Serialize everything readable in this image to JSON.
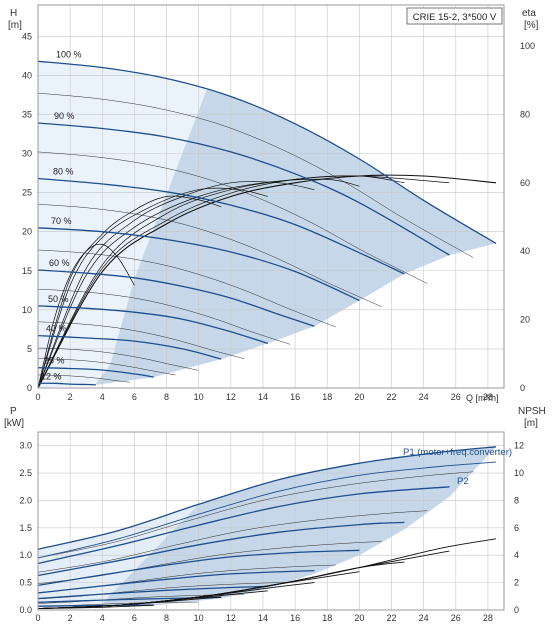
{
  "chart_data": [
    {
      "type": "line",
      "title": "CRIE 15-2, 3*500 V",
      "x_axis": {
        "label": "Q [m³/h]",
        "range": [
          0,
          29
        ],
        "ticks": [
          0,
          2,
          4,
          6,
          8,
          10,
          12,
          14,
          16,
          18,
          20,
          22,
          24,
          26,
          28
        ],
        "tick_labels": [
          "0",
          "2",
          "4",
          "6",
          "8",
          "10",
          "12",
          "14",
          "16",
          "18",
          "20",
          "22",
          "24",
          "26",
          "28"
        ],
        "label_text": "Q [m³/h]"
      },
      "y_left": {
        "label_line1": "H",
        "label_line2": "[m]",
        "range": [
          0,
          49
        ],
        "ticks": [
          0,
          5,
          10,
          15,
          20,
          25,
          30,
          35,
          40,
          45
        ]
      },
      "y_right": {
        "label_line1": "eta",
        "label_line2": "[%]",
        "range": [
          0,
          112
        ],
        "ticks": [
          0,
          20,
          40,
          60,
          80,
          100
        ]
      },
      "grid": true,
      "speed_labels": [
        "100 %",
        "90 %",
        "80 %",
        "70 %",
        "60 %",
        "50 %",
        "40 %",
        "25 %",
        "12 %"
      ],
      "head_curves": [
        {
          "speed": "100 %",
          "x": [
            0,
            4,
            8,
            12,
            16,
            20,
            24,
            28.5
          ],
          "y": [
            41.8,
            41.0,
            39.6,
            37.3,
            33.8,
            29.3,
            24.0,
            18.5
          ]
        },
        {
          "speed": "90 %",
          "x": [
            0,
            4,
            8,
            12,
            16,
            20,
            25.6
          ],
          "y": [
            33.9,
            33.2,
            32.1,
            30.2,
            27.4,
            23.7,
            17.0
          ]
        },
        {
          "speed": "80 %",
          "x": [
            0,
            4,
            8,
            12,
            16,
            20,
            22.8
          ],
          "y": [
            26.8,
            26.1,
            25.1,
            23.4,
            20.9,
            17.3,
            14.6
          ]
        },
        {
          "speed": "70 %",
          "x": [
            0,
            4,
            8,
            12,
            16,
            20
          ],
          "y": [
            20.5,
            20.0,
            19.0,
            17.4,
            14.9,
            11.2
          ]
        },
        {
          "speed": "60 %",
          "x": [
            0,
            3,
            6,
            9,
            12,
            15,
            17.2
          ],
          "y": [
            15.1,
            14.7,
            14.1,
            13.0,
            11.5,
            9.4,
            7.9
          ]
        },
        {
          "speed": "50 %",
          "x": [
            0,
            3,
            6,
            9,
            12,
            14.3
          ],
          "y": [
            10.5,
            10.2,
            9.7,
            8.8,
            7.2,
            5.7
          ]
        },
        {
          "speed": "40 %",
          "x": [
            0,
            3,
            6,
            9,
            11.4
          ],
          "y": [
            6.7,
            6.4,
            6.0,
            5.0,
            3.7
          ]
        },
        {
          "speed": "25 %",
          "x": [
            0,
            2,
            4,
            6,
            7.2
          ],
          "y": [
            2.6,
            2.5,
            2.3,
            1.8,
            1.4
          ]
        },
        {
          "speed": "12 %",
          "x": [
            0,
            1,
            2,
            3,
            3.6
          ],
          "y": [
            0.6,
            0.6,
            0.5,
            0.45,
            0.4
          ]
        }
      ],
      "efficiency_curves": [
        {
          "speed": "100 %",
          "x": [
            0,
            4,
            8,
            12,
            16,
            20,
            24,
            28.5
          ],
          "y": [
            0,
            34,
            48,
            56,
            60,
            62,
            62,
            60
          ]
        },
        {
          "speed": "90 %",
          "x": [
            0,
            4,
            8,
            12,
            16,
            20,
            25.6
          ],
          "y": [
            0,
            35,
            49,
            57,
            61,
            62,
            60
          ]
        },
        {
          "speed": "80 %",
          "x": [
            0,
            4,
            8,
            12,
            16,
            20,
            22.8
          ],
          "y": [
            0,
            36,
            51,
            58,
            61,
            62,
            60
          ]
        },
        {
          "speed": "70 %",
          "x": [
            0,
            3,
            6,
            10,
            14,
            18,
            20
          ],
          "y": [
            0,
            33,
            47,
            56,
            60,
            61,
            59
          ]
        },
        {
          "speed": "60 %",
          "x": [
            0,
            3,
            6,
            9,
            12,
            15,
            17.2
          ],
          "y": [
            0,
            35,
            49,
            56,
            60,
            60,
            58
          ]
        },
        {
          "speed": "50 %",
          "x": [
            0,
            2,
            4,
            7,
            10,
            12.5,
            14.3
          ],
          "y": [
            0,
            30,
            44,
            53,
            58,
            58,
            56
          ]
        },
        {
          "speed": "40 %",
          "x": [
            0,
            2,
            4,
            6,
            8,
            10,
            11.4
          ],
          "y": [
            0,
            32,
            45,
            52,
            56,
            55,
            53
          ]
        },
        {
          "speed": "25 %",
          "x": [
            0,
            1,
            2,
            3,
            4,
            5,
            6
          ],
          "y": [
            0,
            20,
            33,
            40,
            42,
            38,
            30
          ]
        }
      ],
      "thin_head_curves_speeds_percent": [
        95,
        85,
        75,
        65,
        55,
        45,
        35,
        30,
        20
      ]
    },
    {
      "type": "line",
      "x_axis": {
        "range": [
          0,
          29
        ],
        "ticks": [
          0,
          2,
          4,
          6,
          8,
          10,
          12,
          14,
          16,
          18,
          20,
          22,
          24,
          26,
          28
        ]
      },
      "y_left": {
        "label_line1": "P",
        "label_line2": "[kW]",
        "range": [
          0,
          3.25
        ],
        "ticks": [
          0,
          0.5,
          1.0,
          1.5,
          2.0,
          2.5,
          3.0
        ],
        "tick_labels": [
          "0.0",
          "0.5",
          "1.0",
          "1.5",
          "2.0",
          "2.5",
          "3.0"
        ]
      },
      "y_right": {
        "label_line1": "NPSH",
        "label_line2": "[m]",
        "range": [
          0,
          13
        ],
        "ticks": [
          0,
          2,
          4,
          6,
          8,
          10,
          12
        ]
      },
      "grid": true,
      "series_labels": {
        "p1": "P1 (motor+freq.converter)",
        "p2": "P2"
      },
      "p1_curves": [
        {
          "speed": "100 %",
          "x": [
            0,
            5,
            10,
            15,
            20,
            25,
            28.5
          ],
          "y": [
            1.11,
            1.45,
            1.93,
            2.38,
            2.68,
            2.88,
            2.98
          ]
        },
        {
          "speed": "90 %",
          "x": [
            0,
            5,
            10,
            15,
            20,
            25.6
          ],
          "y": [
            0.85,
            1.18,
            1.55,
            1.89,
            2.12,
            2.25
          ]
        },
        {
          "speed": "80 %",
          "x": [
            0,
            5,
            10,
            15,
            20,
            22.8
          ],
          "y": [
            0.63,
            0.9,
            1.19,
            1.42,
            1.56,
            1.6
          ]
        },
        {
          "speed": "70 %",
          "x": [
            0,
            4,
            8,
            12,
            16,
            20
          ],
          "y": [
            0.45,
            0.64,
            0.82,
            0.97,
            1.05,
            1.09
          ]
        },
        {
          "speed": "60 %",
          "x": [
            0,
            4,
            8,
            12,
            17.2
          ],
          "y": [
            0.31,
            0.44,
            0.56,
            0.66,
            0.72
          ]
        },
        {
          "speed": "50 %",
          "x": [
            0,
            4,
            8,
            12,
            14.3
          ],
          "y": [
            0.21,
            0.29,
            0.36,
            0.41,
            0.43
          ]
        },
        {
          "speed": "40 %",
          "x": [
            0,
            4,
            8,
            11.4
          ],
          "y": [
            0.14,
            0.18,
            0.21,
            0.23
          ]
        },
        {
          "speed": "25 %",
          "x": [
            0,
            3,
            7.2
          ],
          "y": [
            0.07,
            0.08,
            0.09
          ]
        }
      ],
      "p2_curve": {
        "x": [
          0,
          5,
          10,
          15,
          20,
          25,
          28.5
        ],
        "y": [
          0.95,
          1.3,
          1.75,
          2.17,
          2.46,
          2.62,
          2.7
        ]
      },
      "npsh_curves": [
        {
          "x": [
            0,
            5,
            10,
            15,
            20,
            25,
            28.5
          ],
          "y": [
            0.1,
            0.35,
            0.95,
            1.9,
            3.1,
            4.5,
            5.2
          ]
        },
        {
          "x": [
            0,
            5,
            10,
            15,
            20,
            25.6
          ],
          "y": [
            0.1,
            0.35,
            0.95,
            1.9,
            3.1,
            4.3
          ]
        },
        {
          "x": [
            0,
            5,
            10,
            15,
            20,
            22.8
          ],
          "y": [
            0.1,
            0.35,
            0.95,
            1.9,
            3.1,
            3.5
          ]
        },
        {
          "x": [
            0,
            5,
            10,
            15,
            20
          ],
          "y": [
            0.1,
            0.35,
            0.95,
            1.9,
            2.8
          ]
        },
        {
          "x": [
            0,
            5,
            10,
            15,
            17.2
          ],
          "y": [
            0.1,
            0.35,
            0.95,
            1.7,
            2.0
          ]
        },
        {
          "x": [
            0,
            5,
            10,
            14.3
          ],
          "y": [
            0.1,
            0.35,
            0.9,
            1.4
          ]
        },
        {
          "x": [
            0,
            5,
            11.4
          ],
          "y": [
            0.1,
            0.35,
            0.95
          ]
        },
        {
          "x": [
            0,
            4,
            7.2
          ],
          "y": [
            0.1,
            0.2,
            0.35
          ]
        }
      ]
    }
  ]
}
